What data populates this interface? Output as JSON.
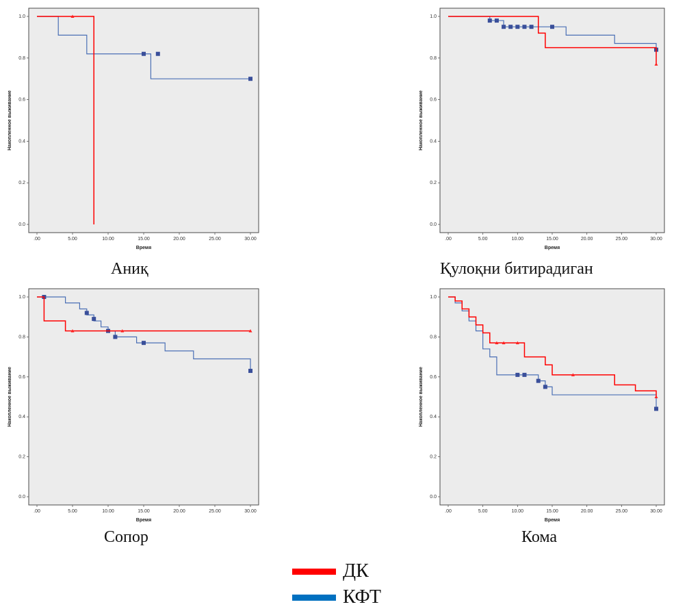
{
  "colors": {
    "dk": "#ff0000",
    "kft": "#4a6fb5",
    "kft_legend": "#0070c0",
    "marker_kft": "#3a4f9a",
    "marker_dk": "#ff2020"
  },
  "legend": [
    {
      "label": "ДК",
      "color": "#ff0000"
    },
    {
      "label": "КФТ",
      "color": "#0070c0"
    }
  ],
  "chart_data": [
    {
      "type": "line",
      "caption": "Аниқ",
      "xlabel": "Время",
      "ylabel": "Накопленное выживание",
      "xlim": [
        0,
        30
      ],
      "ylim": [
        0,
        1
      ],
      "xticks": [
        ".00",
        "5.00",
        "10.00",
        "15.00",
        "20.00",
        "25.00",
        "30.00"
      ],
      "yticks": [
        "0.0",
        "0.2",
        "0.4",
        "0.6",
        "0.8",
        "1.0"
      ],
      "series": [
        {
          "name": "КФТ",
          "steps": [
            [
              0,
              1.0
            ],
            [
              3,
              0.91
            ],
            [
              7,
              0.82
            ],
            [
              16,
              0.7
            ],
            [
              30,
              0.7
            ]
          ],
          "censored": [
            [
              15,
              0.82
            ],
            [
              17,
              0.82
            ],
            [
              30,
              0.7
            ]
          ]
        },
        {
          "name": "ДК",
          "steps": [
            [
              0,
              1.0
            ],
            [
              8,
              0.0
            ]
          ],
          "censored": [
            [
              5,
              1.0
            ]
          ]
        }
      ]
    },
    {
      "type": "line",
      "caption": "Қулоқни битирадиган",
      "xlabel": "Время",
      "ylabel": "Накопленное выживание",
      "xlim": [
        0,
        30
      ],
      "ylim": [
        0,
        1
      ],
      "xticks": [
        ".00",
        "5.00",
        "10.00",
        "15.00",
        "20.00",
        "25.00",
        "30.00"
      ],
      "yticks": [
        "0.0",
        "0.2",
        "0.4",
        "0.6",
        "0.8",
        "1.0"
      ],
      "series": [
        {
          "name": "КФТ",
          "steps": [
            [
              0,
              1.0
            ],
            [
              6,
              0.98
            ],
            [
              8,
              0.95
            ],
            [
              14,
              0.95
            ],
            [
              17,
              0.91
            ],
            [
              24,
              0.87
            ],
            [
              30,
              0.84
            ]
          ],
          "censored": [
            [
              6,
              0.98
            ],
            [
              7,
              0.98
            ],
            [
              8,
              0.95
            ],
            [
              9,
              0.95
            ],
            [
              10,
              0.95
            ],
            [
              11,
              0.95
            ],
            [
              12,
              0.95
            ],
            [
              15,
              0.95
            ],
            [
              30,
              0.84
            ]
          ]
        },
        {
          "name": "ДК",
          "steps": [
            [
              0,
              1.0
            ],
            [
              13,
              0.92
            ],
            [
              14,
              0.85
            ],
            [
              30,
              0.77
            ]
          ],
          "censored": [
            [
              30,
              0.77
            ]
          ]
        }
      ]
    },
    {
      "type": "line",
      "caption": "Сопор",
      "xlabel": "Время",
      "ylabel": "Накопленное выживание",
      "xlim": [
        0,
        30
      ],
      "ylim": [
        0,
        1
      ],
      "xticks": [
        ".00",
        "5.00",
        "10.00",
        "15.00",
        "20.00",
        "25.00",
        "30.00"
      ],
      "yticks": [
        "0.0",
        "0.2",
        "0.4",
        "0.6",
        "0.8",
        "1.0"
      ],
      "series": [
        {
          "name": "КФТ",
          "steps": [
            [
              0,
              1.0
            ],
            [
              4,
              0.97
            ],
            [
              6,
              0.94
            ],
            [
              7,
              0.91
            ],
            [
              8,
              0.88
            ],
            [
              9,
              0.85
            ],
            [
              10,
              0.83
            ],
            [
              11,
              0.8
            ],
            [
              14,
              0.77
            ],
            [
              18,
              0.73
            ],
            [
              22,
              0.69
            ],
            [
              30,
              0.63
            ]
          ],
          "censored": [
            [
              1,
              1.0
            ],
            [
              7,
              0.92
            ],
            [
              8,
              0.89
            ],
            [
              10,
              0.83
            ],
            [
              11,
              0.8
            ],
            [
              15,
              0.77
            ],
            [
              30,
              0.63
            ]
          ]
        },
        {
          "name": "ДК",
          "steps": [
            [
              0,
              1.0
            ],
            [
              1,
              0.88
            ],
            [
              4,
              0.83
            ],
            [
              30,
              0.83
            ]
          ],
          "censored": [
            [
              5,
              0.83
            ],
            [
              12,
              0.83
            ],
            [
              30,
              0.83
            ]
          ]
        }
      ]
    },
    {
      "type": "line",
      "caption": "Кома",
      "xlabel": "Время",
      "ylabel": "Накопленное выживание",
      "xlim": [
        0,
        30
      ],
      "ylim": [
        0,
        1
      ],
      "xticks": [
        ".00",
        "5.00",
        "10.00",
        "15.00",
        "20.00",
        "25.00",
        "30.00"
      ],
      "yticks": [
        "0.0",
        "0.2",
        "0.4",
        "0.6",
        "0.8",
        "1.0"
      ],
      "series": [
        {
          "name": "КФТ",
          "steps": [
            [
              0,
              1.0
            ],
            [
              1,
              0.97
            ],
            [
              2,
              0.93
            ],
            [
              3,
              0.88
            ],
            [
              4,
              0.83
            ],
            [
              5,
              0.74
            ],
            [
              6,
              0.7
            ],
            [
              7,
              0.61
            ],
            [
              13,
              0.58
            ],
            [
              14,
              0.55
            ],
            [
              15,
              0.51
            ],
            [
              30,
              0.44
            ]
          ],
          "censored": [
            [
              10,
              0.61
            ],
            [
              11,
              0.61
            ],
            [
              13,
              0.58
            ],
            [
              14,
              0.55
            ],
            [
              30,
              0.44
            ]
          ]
        },
        {
          "name": "ДК",
          "steps": [
            [
              0,
              1.0
            ],
            [
              1,
              0.98
            ],
            [
              2,
              0.94
            ],
            [
              3,
              0.9
            ],
            [
              4,
              0.86
            ],
            [
              5,
              0.82
            ],
            [
              6,
              0.77
            ],
            [
              11,
              0.7
            ],
            [
              14,
              0.66
            ],
            [
              15,
              0.61
            ],
            [
              24,
              0.56
            ],
            [
              27,
              0.53
            ],
            [
              30,
              0.5
            ]
          ],
          "censored": [
            [
              7,
              0.77
            ],
            [
              8,
              0.77
            ],
            [
              10,
              0.77
            ],
            [
              18,
              0.61
            ],
            [
              30,
              0.5
            ]
          ]
        }
      ]
    }
  ]
}
